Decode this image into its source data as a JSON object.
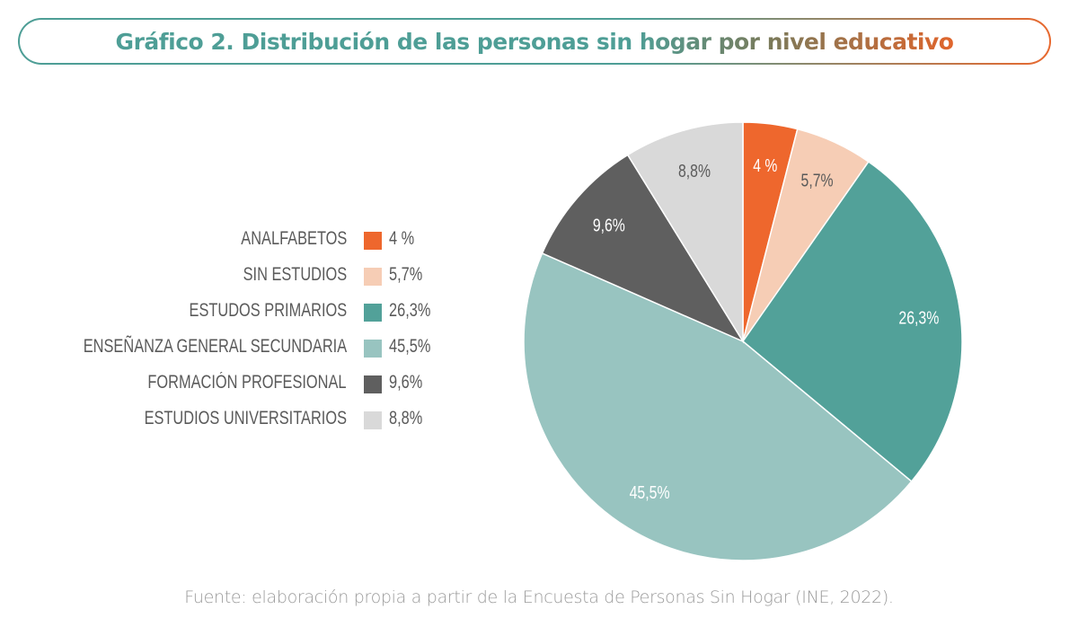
{
  "title": "Gráfico 2. Distribución de las personas sin hogar por nivel educativo",
  "source": "Fuente: elaboración propia a partir de la Encuesta de Personas Sin Hogar (INE, 2022).",
  "chart_data": {
    "type": "pie",
    "title": "Gráfico 2. Distribución de las personas sin hogar por nivel educativo",
    "legend_position": "left",
    "start_angle": "top, clockwise",
    "slices": [
      {
        "name": "ANALFABETOS",
        "value": 4.0,
        "label": "4 %",
        "color": "#ee672d",
        "label_color": "#ffffff"
      },
      {
        "name": "SIN ESTUDIOS",
        "value": 5.7,
        "label": "5,7%",
        "color": "#f6cdb5",
        "label_color": "#5a5a5a"
      },
      {
        "name": "ESTUDOS PRIMARIOS",
        "value": 26.3,
        "label": "26,3%",
        "color": "#52a199",
        "label_color": "#ffffff"
      },
      {
        "name": "ENSEÑANZA GENERAL SECUNDARIA",
        "value": 45.5,
        "label": "45,5%",
        "color": "#98c4c0",
        "label_color": "#ffffff"
      },
      {
        "name": "FORMACIÓN PROFESIONAL",
        "value": 9.6,
        "label": "9,6%",
        "color": "#5f5f5f",
        "label_color": "#ffffff"
      },
      {
        "name": "ESTUDIOS UNIVERSITARIOS",
        "value": 8.8,
        "label": "8,8%",
        "color": "#d9d9d9",
        "label_color": "#5a5a5a"
      }
    ]
  }
}
